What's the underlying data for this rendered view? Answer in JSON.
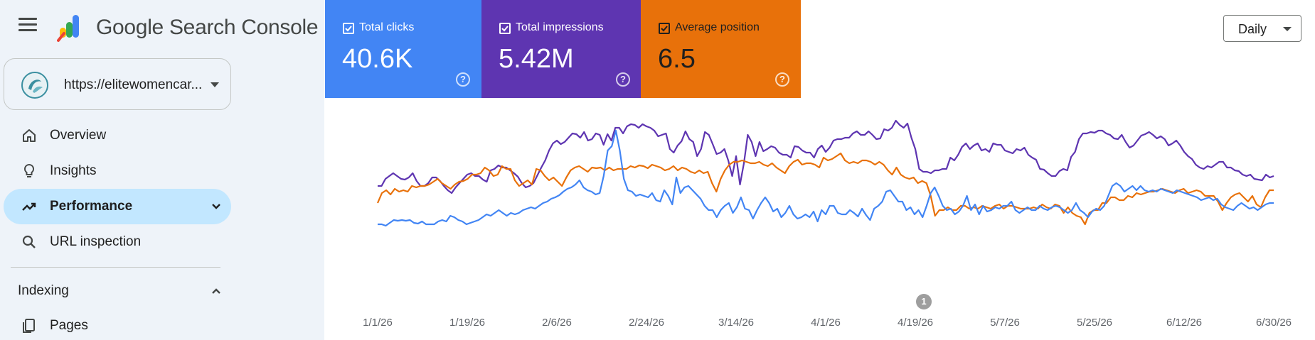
{
  "app": {
    "product_name": "Google Search Console",
    "menu_icon": "hamburger-menu-icon",
    "logo_icon": "search-console-logo-icon"
  },
  "property": {
    "url": "https://elitewomencar...",
    "favicon": "site-favicon-icon"
  },
  "sidebar": {
    "items": [
      {
        "label": "Overview",
        "icon": "home-icon"
      },
      {
        "label": "Insights",
        "icon": "lightbulb-icon"
      },
      {
        "label": "Performance",
        "icon": "trending-up-icon",
        "active": true
      },
      {
        "label": "URL inspection",
        "icon": "search-icon"
      }
    ],
    "sections": [
      {
        "label": "Indexing",
        "expanded": true,
        "items": [
          {
            "label": "Pages",
            "icon": "pages-icon"
          }
        ]
      }
    ]
  },
  "metrics": [
    {
      "label": "Total clicks",
      "value": "40.6K",
      "checked": true,
      "color": "#4285f4"
    },
    {
      "label": "Total impressions",
      "value": "5.42M",
      "checked": true,
      "color": "#5e35b1"
    },
    {
      "label": "Average position",
      "value": "6.5",
      "checked": true,
      "color": "#e8710a"
    }
  ],
  "granularity": {
    "selected": "Daily"
  },
  "annotation": {
    "label": "1"
  },
  "chart_data": {
    "type": "line",
    "x_tick_labels": [
      "1/1/26",
      "1/19/26",
      "2/6/26",
      "2/24/26",
      "3/14/26",
      "4/1/26",
      "4/19/26",
      "5/7/26",
      "5/25/26",
      "6/12/26",
      "6/30/26"
    ],
    "series": [
      {
        "name": "Total impressions",
        "color": "#5e35b1",
        "values": [
          262,
          262,
          252,
          248,
          244,
          248,
          252,
          253,
          250,
          244,
          255,
          262,
          262,
          258,
          250,
          250,
          255,
          262,
          268,
          272,
          264,
          258,
          252,
          246,
          244,
          248,
          248,
          253,
          256,
          240,
          238,
          233,
          236,
          236,
          240,
          244,
          249,
          258,
          264,
          262,
          258,
          247,
          236,
          226,
          212,
          202,
          198,
          203,
          200,
          194,
          188,
          189,
          194,
          186,
          198,
          196,
          188,
          190,
          204,
          189,
          198,
          180,
          180,
          188,
          178,
          175,
          176,
          180,
          175,
          178,
          180,
          184,
          192,
          190,
          188,
          210,
          215,
          205,
          199,
          185,
          196,
          200,
          220,
          210,
          186,
          190,
          203,
          217,
          215,
          210,
          226,
          248,
          220,
          260,
          230,
          190,
          200,
          220,
          200,
          213,
          210,
          206,
          208,
          215,
          218,
          218,
          222,
          206,
          207,
          212,
          215,
          215,
          222,
          210,
          205,
          214,
          208,
          198,
          196,
          196,
          194,
          194,
          188,
          185,
          190,
          190,
          185,
          190,
          196,
          195,
          182,
          184,
          180,
          170,
          176,
          180,
          174,
          194,
          210,
          238,
          242,
          242,
          244,
          240,
          240,
          238,
          238,
          222,
          226,
          218,
          207,
          202,
          210,
          205,
          202,
          212,
          210,
          214,
          202,
          204,
          204,
          212,
          214,
          216,
          210,
          212,
          208,
          218,
          222,
          225,
          238,
          239,
          244,
          248,
          248,
          241,
          238,
          240,
          221,
          214,
          196,
          188,
          188,
          186,
          187,
          184,
          184,
          188,
          190,
          195,
          196,
          190,
          200,
          208,
          205,
          198,
          191,
          189,
          186,
          190,
          195,
          192,
          196,
          205,
          202,
          198,
          205,
          214,
          220,
          224,
          232,
          236,
          238,
          234,
          236,
          232,
          228,
          228,
          236,
          236,
          240,
          241,
          246,
          248,
          246,
          252,
          253,
          254,
          246,
          250,
          248
        ]
      },
      {
        "name": "Average position",
        "color": "#e8710a",
        "values": [
          286,
          272,
          268,
          274,
          266,
          270,
          268,
          270,
          262,
          264,
          262,
          262,
          260,
          256,
          252,
          258,
          262,
          266,
          260,
          256,
          255,
          252,
          246,
          246,
          244,
          236,
          240,
          248,
          246,
          234,
          238,
          238,
          254,
          262,
          258,
          254,
          260,
          238,
          240,
          248,
          254,
          250,
          256,
          262,
          250,
          240,
          236,
          234,
          238,
          242,
          236,
          237,
          236,
          240,
          236,
          240,
          238,
          238,
          238,
          234,
          236,
          233,
          234,
          237,
          232,
          234,
          236,
          240,
          238,
          234,
          240,
          236,
          238,
          242,
          244,
          240,
          244,
          242,
          258,
          270,
          252,
          240,
          232,
          228,
          228,
          226,
          228,
          230,
          230,
          228,
          232,
          234,
          230,
          236,
          240,
          244,
          234,
          228,
          225,
          232,
          230,
          230,
          232,
          236,
          222,
          226,
          224,
          220,
          216,
          226,
          230,
          228,
          230,
          226,
          226,
          228,
          232,
          228,
          232,
          240,
          246,
          236,
          246,
          250,
          252,
          250,
          258,
          255,
          258,
          276,
          304,
          296,
          296,
          292,
          296,
          296,
          290,
          290,
          294,
          292,
          294,
          290,
          292,
          294,
          290,
          288,
          294,
          290,
          290,
          292,
          294,
          294,
          294,
          292,
          294,
          288,
          292,
          294,
          288,
          290,
          300,
          292,
          300,
          304,
          306,
          316,
          300,
          296,
          296,
          286,
          286,
          278,
          278,
          282,
          282,
          276,
          278,
          272,
          274,
          272,
          270,
          270,
          268,
          266,
          268,
          270,
          272,
          268,
          266,
          272,
          270,
          268,
          270,
          276,
          276,
          276,
          284,
          296,
          286,
          278,
          274,
          272,
          278,
          284,
          276,
          288,
          292,
          278,
          268,
          268
        ]
      },
      {
        "name": "Total clicks",
        "color": "#4285f4",
        "values": [
          316,
          316,
          318,
          314,
          310,
          311,
          310,
          311,
          310,
          314,
          315,
          312,
          316,
          316,
          316,
          312,
          310,
          312,
          304,
          306,
          310,
          312,
          316,
          314,
          312,
          310,
          306,
          302,
          304,
          300,
          296,
          300,
          304,
          300,
          302,
          300,
          296,
          294,
          292,
          294,
          290,
          286,
          284,
          280,
          278,
          275,
          270,
          266,
          264,
          260,
          254,
          264,
          268,
          270,
          274,
          272,
          248,
          212,
          206,
          184,
          212,
          252,
          268,
          270,
          276,
          274,
          276,
          278,
          272,
          282,
          284,
          268,
          276,
          288,
          250,
          272,
          264,
          262,
          268,
          274,
          280,
          290,
          296,
          296,
          306,
          296,
          290,
          286,
          300,
          292,
          278,
          294,
          296,
          308,
          296,
          286,
          278,
          286,
          298,
          294,
          306,
          300,
          290,
          302,
          308,
          306,
          302,
          306,
          298,
          312,
          296,
          302,
          290,
          290,
          300,
          302,
          302,
          296,
          300,
          305,
          294,
          303,
          310,
          294,
          290,
          284,
          270,
          268,
          276,
          284,
          284,
          296,
          292,
          302,
          296,
          306,
          290,
          272,
          264,
          276,
          290,
          296,
          294,
          302,
          298,
          290,
          276,
          296,
          288,
          302,
          290,
          298,
          296,
          292,
          294,
          290,
          290,
          284,
          296,
          300,
          296,
          292,
          296,
          296,
          290,
          294,
          296,
          292,
          290,
          292,
          296,
          300,
          296,
          286,
          296,
          300,
          306,
          298,
          294,
          296,
          290,
          276,
          262,
          258,
          262,
          270,
          266,
          262,
          268,
          262,
          268,
          270,
          268,
          270,
          266,
          268,
          270,
          272,
          268,
          270,
          272,
          274,
          276,
          278,
          282,
          280,
          278,
          282,
          280,
          288,
          292,
          294,
          296,
          290,
          286,
          290,
          294,
          292,
          296,
          292,
          288,
          286,
          286
        ]
      }
    ]
  }
}
